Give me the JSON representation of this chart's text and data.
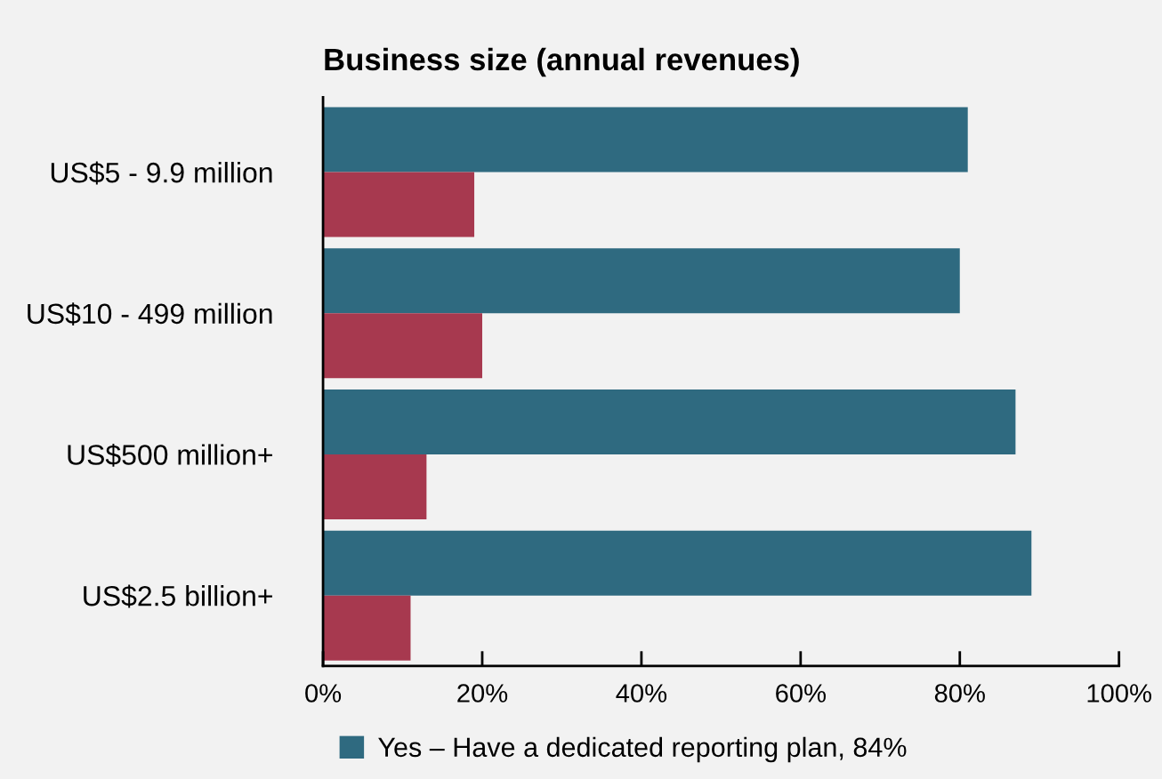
{
  "chart_data": {
    "type": "bar",
    "orientation": "horizontal",
    "title": "Business size (annual revenues)",
    "categories": [
      "US$5 - 9.9 million",
      "US$10 - 499 million",
      "US$500 million+",
      "US$2.5 billion+"
    ],
    "series": [
      {
        "name": "Yes – Have a dedicated reporting plan, 84%",
        "color": "#2f6a80",
        "values": [
          81,
          80,
          87,
          89
        ]
      },
      {
        "color": "#a7394f",
        "values": [
          19,
          20,
          13,
          11
        ]
      }
    ],
    "xlim": [
      0,
      100
    ],
    "xticks": [
      {
        "value": 0,
        "label": "0%"
      },
      {
        "value": 20,
        "label": "20%"
      },
      {
        "value": 40,
        "label": "40%"
      },
      {
        "value": 60,
        "label": "60%"
      },
      {
        "value": 80,
        "label": "80%"
      },
      {
        "value": 100,
        "label": "100%"
      }
    ],
    "grid": false,
    "legend": "bottom left"
  }
}
